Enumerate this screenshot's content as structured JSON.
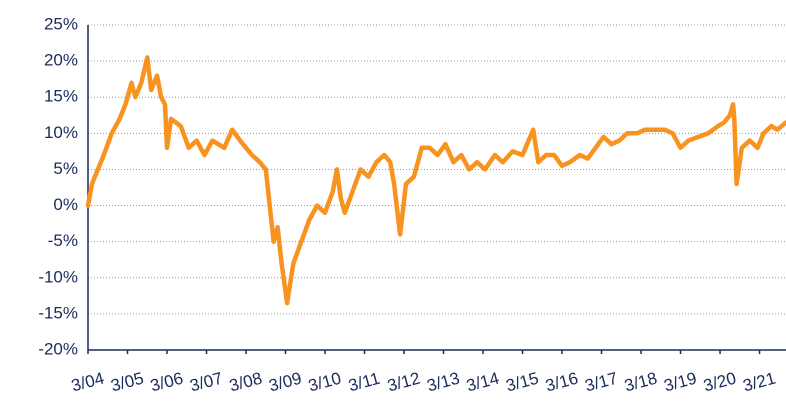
{
  "chart_data": {
    "type": "line",
    "x": [
      2004.0,
      2004.1,
      2004.25,
      2004.4,
      2004.6,
      2004.8,
      2004.95,
      2005.1,
      2005.2,
      2005.35,
      2005.5,
      2005.6,
      2005.75,
      2005.85,
      2005.95,
      2006.0,
      2006.1,
      2006.35,
      2006.55,
      2006.75,
      2006.95,
      2007.15,
      2007.45,
      2007.65,
      2007.85,
      2008.15,
      2008.35,
      2008.5,
      2008.6,
      2008.7,
      2008.8,
      2008.9,
      2009.04,
      2009.2,
      2009.4,
      2009.6,
      2009.8,
      2010.0,
      2010.2,
      2010.3,
      2010.4,
      2010.5,
      2010.7,
      2010.9,
      2011.1,
      2011.3,
      2011.5,
      2011.65,
      2011.75,
      2011.9,
      2012.05,
      2012.25,
      2012.45,
      2012.65,
      2012.85,
      2013.05,
      2013.25,
      2013.45,
      2013.65,
      2013.85,
      2014.05,
      2014.3,
      2014.5,
      2014.75,
      2015.0,
      2015.27,
      2015.4,
      2015.6,
      2015.8,
      2016.0,
      2016.2,
      2016.45,
      2016.65,
      2016.85,
      2017.05,
      2017.25,
      2017.45,
      2017.65,
      2017.9,
      2018.1,
      2018.35,
      2018.6,
      2018.8,
      2019.0,
      2019.2,
      2019.45,
      2019.7,
      2019.95,
      2020.1,
      2020.25,
      2020.33,
      2020.36,
      2020.42,
      2020.55,
      2020.75,
      2020.95,
      2021.1,
      2021.3,
      2021.45,
      2021.67
    ],
    "series": [
      {
        "color": "#f7931e",
        "values": [
          0,
          3,
          5,
          7,
          10,
          12,
          14,
          17,
          15,
          17,
          20.5,
          16,
          18,
          15,
          14,
          8,
          12,
          11,
          8,
          9,
          7,
          9,
          8,
          10.5,
          9,
          7,
          6,
          5,
          0,
          -5,
          -3,
          -8,
          -13.5,
          -8,
          -5,
          -2,
          0,
          -1,
          2,
          5,
          1,
          -1,
          2,
          5,
          4,
          6,
          7,
          6,
          3,
          -4,
          3,
          4,
          8,
          8,
          7,
          8.5,
          6,
          7,
          5,
          6,
          5,
          7,
          6,
          7.5,
          7,
          10.5,
          6,
          7,
          7,
          5.5,
          6,
          7,
          6.5,
          8,
          9.5,
          8.5,
          9,
          10,
          10,
          10.5,
          10.5,
          10.5,
          10,
          8,
          9,
          9.5,
          10,
          11,
          11.5,
          12.5,
          14,
          12,
          3,
          8,
          9,
          8,
          10,
          11,
          10.5,
          11.5
        ]
      }
    ],
    "xlim": [
      2004,
      2021.67
    ],
    "xticks": [
      {
        "value": 2004,
        "label": "3/04"
      },
      {
        "value": 2005,
        "label": "3/05"
      },
      {
        "value": 2006,
        "label": "3/06"
      },
      {
        "value": 2007,
        "label": "3/07"
      },
      {
        "value": 2008,
        "label": "3/08"
      },
      {
        "value": 2009,
        "label": "3/09"
      },
      {
        "value": 2010,
        "label": "3/10"
      },
      {
        "value": 2011,
        "label": "3/11"
      },
      {
        "value": 2012,
        "label": "3/12"
      },
      {
        "value": 2013,
        "label": "3/13"
      },
      {
        "value": 2014,
        "label": "3/14"
      },
      {
        "value": 2015,
        "label": "3/15"
      },
      {
        "value": 2016,
        "label": "3/16"
      },
      {
        "value": 2017,
        "label": "3/17"
      },
      {
        "value": 2018,
        "label": "3/18"
      },
      {
        "value": 2019,
        "label": "3/19"
      },
      {
        "value": 2020,
        "label": "3/20"
      },
      {
        "value": 2021,
        "label": "3/21"
      }
    ],
    "ylim": [
      -20,
      25
    ],
    "yticks": [
      {
        "value": -20,
        "label": "-20%"
      },
      {
        "value": -15,
        "label": "-15%"
      },
      {
        "value": -10,
        "label": "-10%"
      },
      {
        "value": -5,
        "label": "-5%"
      },
      {
        "value": 0,
        "label": "0%"
      },
      {
        "value": 5,
        "label": "5%"
      },
      {
        "value": 10,
        "label": "10%"
      },
      {
        "value": 15,
        "label": "15%"
      },
      {
        "value": 20,
        "label": "20%"
      },
      {
        "value": 25,
        "label": "25%"
      }
    ],
    "grid": true
  }
}
